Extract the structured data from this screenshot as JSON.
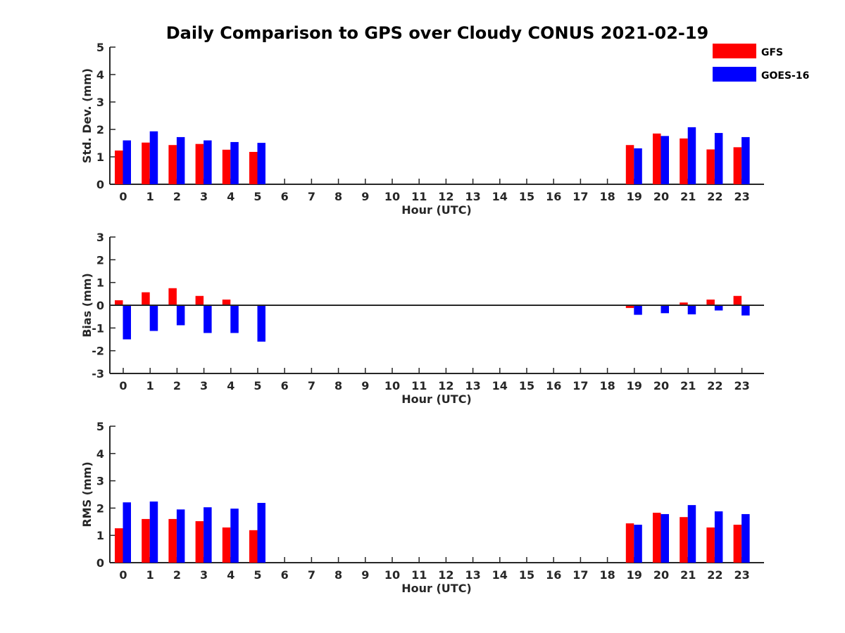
{
  "chart_data": [
    {
      "type": "bar",
      "title": "Daily Comparison to GPS over Cloudy CONUS 2021-02-19",
      "xlabel": "Hour (UTC)",
      "ylabel": "Std. Dev. (mm)",
      "ylim": [
        0,
        5
      ],
      "yticks": [
        0,
        1,
        2,
        3,
        4,
        5
      ],
      "categories": [
        "0",
        "1",
        "2",
        "3",
        "4",
        "5",
        "6",
        "7",
        "8",
        "9",
        "10",
        "11",
        "12",
        "13",
        "14",
        "15",
        "16",
        "17",
        "18",
        "19",
        "20",
        "21",
        "22",
        "23"
      ],
      "series": [
        {
          "name": "GFS",
          "color": "#ff0000",
          "values": [
            1.23,
            1.52,
            1.43,
            1.47,
            1.26,
            1.18,
            null,
            null,
            null,
            null,
            null,
            null,
            null,
            null,
            null,
            null,
            null,
            null,
            null,
            1.43,
            1.85,
            1.67,
            1.27,
            1.35
          ]
        },
        {
          "name": "GOES-16",
          "color": "#0000ff",
          "values": [
            1.6,
            1.93,
            1.72,
            1.6,
            1.54,
            1.51,
            null,
            null,
            null,
            null,
            null,
            null,
            null,
            null,
            null,
            null,
            null,
            null,
            null,
            1.31,
            1.76,
            2.08,
            1.87,
            1.72
          ]
        }
      ],
      "legend": "top-right",
      "grid": false
    },
    {
      "type": "bar",
      "xlabel": "Hour (UTC)",
      "ylabel": "Bias (mm)",
      "ylim": [
        -3,
        3
      ],
      "yticks": [
        -3,
        -2,
        -1,
        0,
        1,
        2,
        3
      ],
      "zero_line": true,
      "categories": [
        "0",
        "1",
        "2",
        "3",
        "4",
        "5",
        "6",
        "7",
        "8",
        "9",
        "10",
        "11",
        "12",
        "13",
        "14",
        "15",
        "16",
        "17",
        "18",
        "19",
        "20",
        "21",
        "22",
        "23"
      ],
      "series": [
        {
          "name": "GFS",
          "color": "#ff0000",
          "values": [
            0.22,
            0.57,
            0.75,
            0.41,
            0.25,
            0.0,
            null,
            null,
            null,
            null,
            null,
            null,
            null,
            null,
            null,
            null,
            null,
            null,
            null,
            -0.12,
            0.0,
            0.12,
            0.25,
            0.41
          ]
        },
        {
          "name": "GOES-16",
          "color": "#0000ff",
          "values": [
            -1.5,
            -1.13,
            -0.88,
            -1.22,
            -1.22,
            -1.6,
            null,
            null,
            null,
            null,
            null,
            null,
            null,
            null,
            null,
            null,
            null,
            null,
            null,
            -0.42,
            -0.35,
            -0.4,
            -0.23,
            -0.45
          ]
        }
      ],
      "grid": false
    },
    {
      "type": "bar",
      "xlabel": "Hour (UTC)",
      "ylabel": "RMS (mm)",
      "ylim": [
        0,
        5
      ],
      "yticks": [
        0,
        1,
        2,
        3,
        4,
        5
      ],
      "categories": [
        "0",
        "1",
        "2",
        "3",
        "4",
        "5",
        "6",
        "7",
        "8",
        "9",
        "10",
        "11",
        "12",
        "13",
        "14",
        "15",
        "16",
        "17",
        "18",
        "19",
        "20",
        "21",
        "22",
        "23"
      ],
      "series": [
        {
          "name": "GFS",
          "color": "#ff0000",
          "values": [
            1.26,
            1.6,
            1.6,
            1.52,
            1.29,
            1.19,
            null,
            null,
            null,
            null,
            null,
            null,
            null,
            null,
            null,
            null,
            null,
            null,
            null,
            1.44,
            1.83,
            1.67,
            1.29,
            1.39
          ]
        },
        {
          "name": "GOES-16",
          "color": "#0000ff",
          "values": [
            2.21,
            2.24,
            1.95,
            2.03,
            1.98,
            2.19,
            null,
            null,
            null,
            null,
            null,
            null,
            null,
            null,
            null,
            null,
            null,
            null,
            null,
            1.39,
            1.78,
            2.11,
            1.88,
            1.78
          ]
        }
      ],
      "grid": false
    }
  ]
}
